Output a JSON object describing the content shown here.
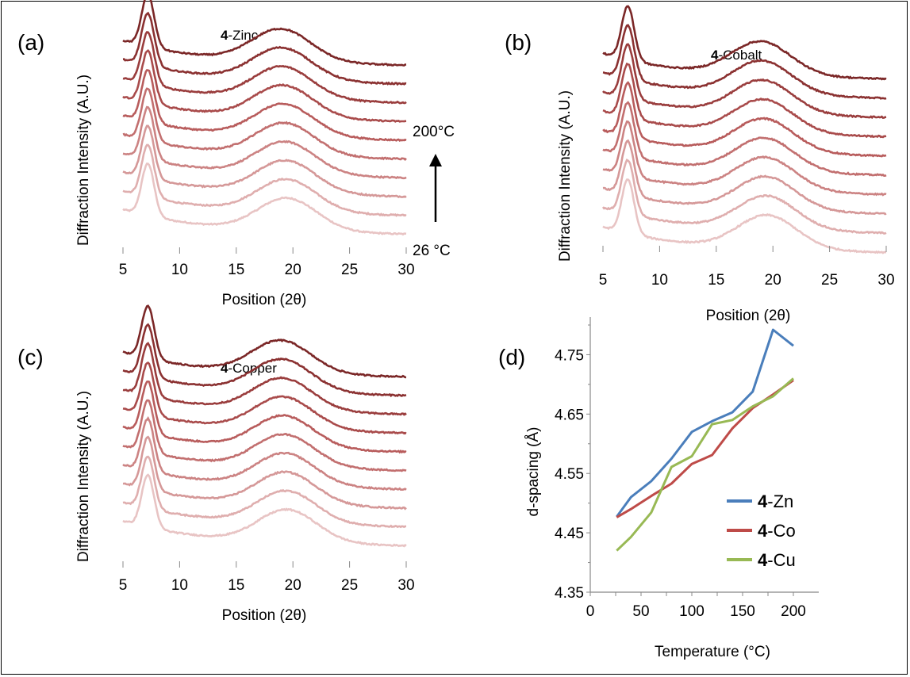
{
  "figure": {
    "panels": [
      {
        "id": "a",
        "label": "(a)",
        "title_bold": "4",
        "title_rest": "-Zinc",
        "xlabel": "Position (2θ)",
        "ylabel": "Diffraction Intensity (A.U.)",
        "xticks": [
          "5",
          "10",
          "15",
          "20",
          "25",
          "30"
        ],
        "annotations": {
          "top": "200°C",
          "bottom": "26 °C"
        }
      },
      {
        "id": "b",
        "label": "(b)",
        "title_bold": "4",
        "title_rest": "-Cobalt",
        "xlabel": "Position (2θ)",
        "ylabel": "Diffraction Intensity (A.U.)",
        "xticks": [
          "5",
          "10",
          "15",
          "20",
          "25",
          "30"
        ]
      },
      {
        "id": "c",
        "label": "(c)",
        "title_bold": "4",
        "title_rest": "-Copper",
        "xlabel": "Position (2θ)",
        "ylabel": "Diffraction Intensity (A.U.)",
        "xticks": [
          "5",
          "10",
          "15",
          "20",
          "25",
          "30"
        ]
      },
      {
        "id": "d",
        "label": "(d)",
        "xlabel": "Temperature (°C)",
        "ylabel": "d-spacing (Å)",
        "xticks": [
          "0",
          "50",
          "100",
          "150",
          "200"
        ],
        "yticks": [
          "4.35",
          "4.45",
          "4.55",
          "4.65",
          "4.75"
        ]
      }
    ]
  },
  "chart_data": [
    {
      "type": "line",
      "panel": "a",
      "title": "4-Zinc",
      "xlabel": "Position (2θ)",
      "ylabel": "Diffraction Intensity (A.U.)",
      "xlim": [
        5,
        30
      ],
      "n_traces": 10,
      "temperature_range_label": [
        "26 °C",
        "200°C"
      ],
      "peaks_2theta": [
        7.2,
        19.5
      ],
      "colors": [
        "#e8c4c4",
        "#dfaeae",
        "#d59898",
        "#cc8383",
        "#c26f6f",
        "#b85c5c",
        "#a94b4b",
        "#9a3d3d",
        "#8b3131",
        "#7b2727"
      ]
    },
    {
      "type": "line",
      "panel": "b",
      "title": "4-Cobalt",
      "xlabel": "Position (2θ)",
      "ylabel": "Diffraction Intensity (A.U.)",
      "xlim": [
        5,
        30
      ],
      "n_traces": 10,
      "peaks_2theta": [
        7.2,
        19.5
      ],
      "colors": [
        "#e8c4c4",
        "#dfaeae",
        "#d59898",
        "#cc8383",
        "#c26f6f",
        "#b85c5c",
        "#a94b4b",
        "#9a3d3d",
        "#8b3131",
        "#7b2727"
      ]
    },
    {
      "type": "line",
      "panel": "c",
      "title": "4-Copper",
      "xlabel": "Position (2θ)",
      "ylabel": "Diffraction Intensity (A.U.)",
      "xlim": [
        5,
        30
      ],
      "n_traces": 10,
      "peaks_2theta": [
        7.2,
        19.5
      ],
      "colors": [
        "#e8c4c4",
        "#dfaeae",
        "#d59898",
        "#cc8383",
        "#c26f6f",
        "#b85c5c",
        "#a94b4b",
        "#9a3d3d",
        "#8b3131",
        "#7b2727"
      ]
    },
    {
      "type": "line",
      "panel": "d",
      "xlabel": "Temperature (°C)",
      "ylabel": "d-spacing (Å)",
      "xlim": [
        0,
        225
      ],
      "ylim": [
        4.35,
        4.8
      ],
      "legend_position": "right",
      "x": [
        26,
        40,
        60,
        80,
        100,
        120,
        140,
        160,
        180,
        200
      ],
      "series": [
        {
          "name": "4-Zn",
          "name_bold": "4",
          "name_rest": "-Zn",
          "color": "#4a7ebb",
          "values": [
            4.477,
            4.51,
            4.537,
            4.575,
            4.62,
            4.638,
            4.653,
            4.688,
            4.792,
            4.765
          ]
        },
        {
          "name": "4-Co",
          "name_bold": "4",
          "name_rest": "-Co",
          "color": "#be4b48",
          "values": [
            4.476,
            4.49,
            4.512,
            4.533,
            4.566,
            4.581,
            4.626,
            4.66,
            4.683,
            4.707
          ]
        },
        {
          "name": "4-Cu",
          "name_bold": "4",
          "name_rest": "-Cu",
          "color": "#98b954",
          "values": [
            4.42,
            4.443,
            4.484,
            4.561,
            4.579,
            4.633,
            4.64,
            4.663,
            4.68,
            4.71
          ]
        }
      ]
    }
  ]
}
